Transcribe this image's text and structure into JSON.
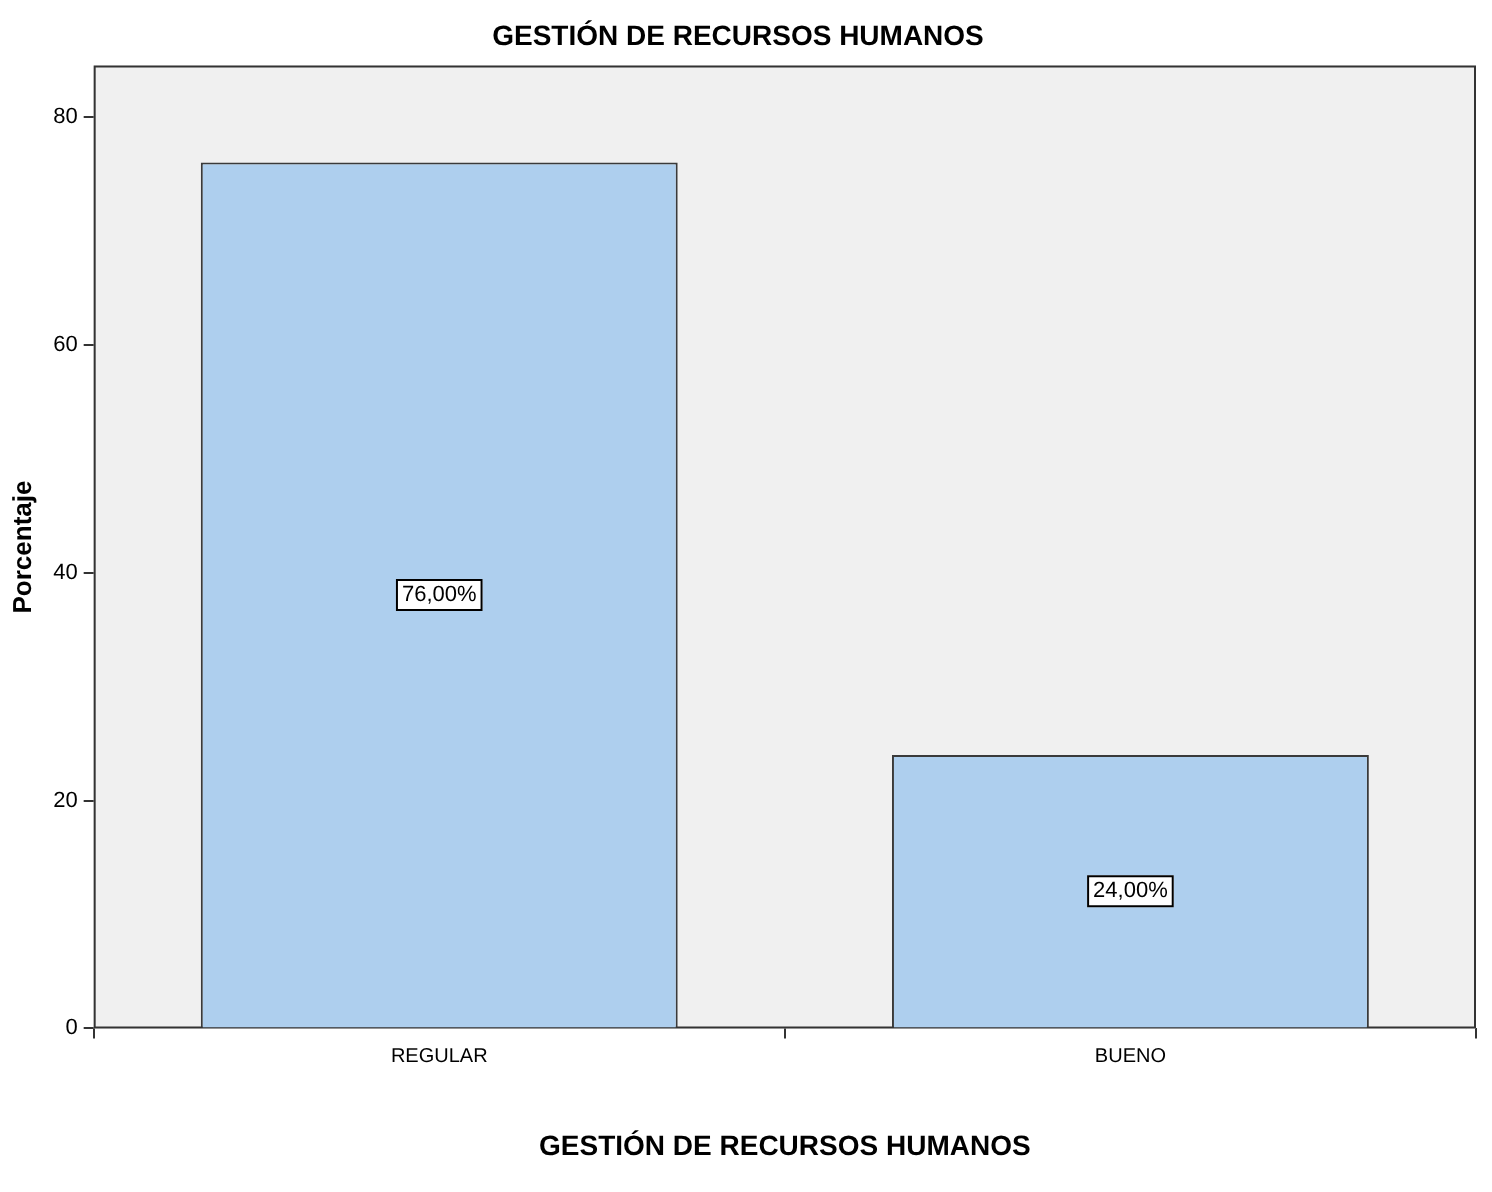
{
  "chart_data": {
    "type": "bar",
    "title": "GESTIÓN DE RECURSOS HUMANOS",
    "xlabel": "GESTIÓN DE RECURSOS HUMANOS",
    "ylabel": "Porcentaje",
    "categories": [
      "REGULAR",
      "BUENO"
    ],
    "values": [
      76,
      24
    ],
    "value_labels": [
      "76,00%",
      "24,00%"
    ],
    "color": "#aecfee",
    "ylim": [
      0,
      84.5
    ],
    "yticks": [
      0,
      20,
      40,
      60,
      80
    ]
  }
}
